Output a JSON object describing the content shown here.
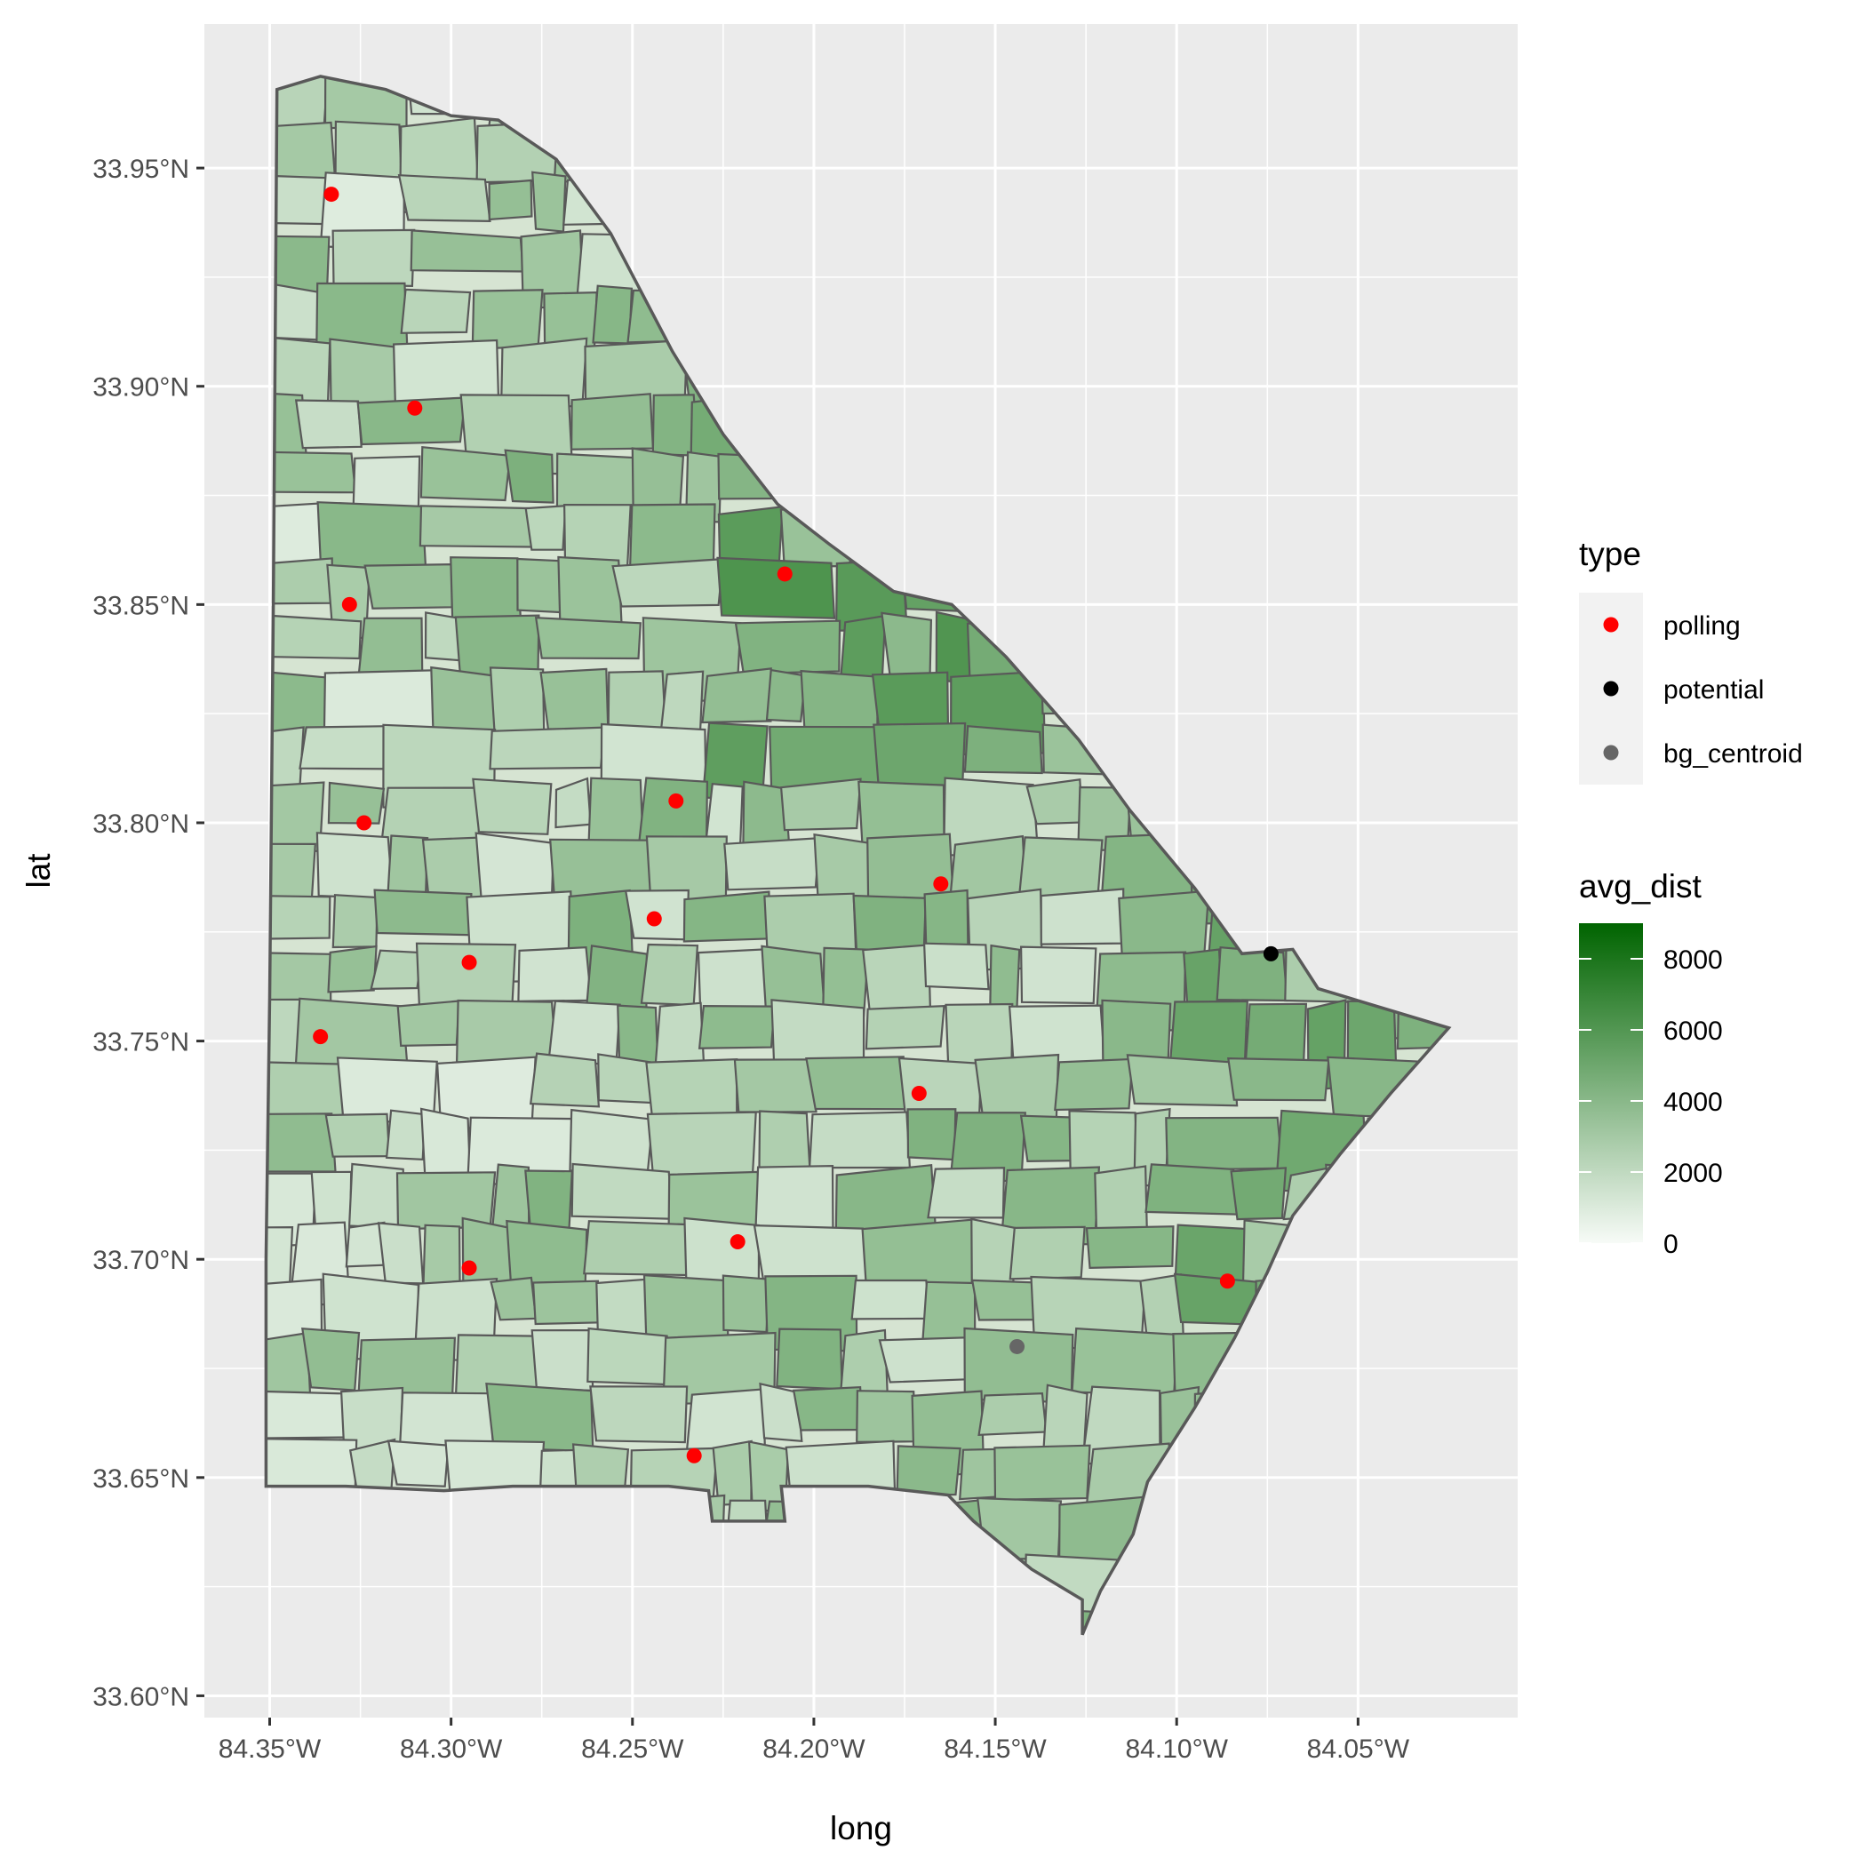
{
  "chart_data": {
    "type": "map",
    "title": "",
    "xlabel": "long",
    "ylabel": "lat",
    "x_ticks": [
      "84.35°W",
      "84.30°W",
      "84.25°W",
      "84.20°W",
      "84.15°W",
      "84.10°W",
      "84.05°W"
    ],
    "y_ticks": [
      "33.95°N",
      "33.90°N",
      "33.85°N",
      "33.80°N",
      "33.75°N",
      "33.70°N",
      "33.65°N",
      "33.60°N"
    ],
    "x_tick_values": [
      -84.35,
      -84.3,
      -84.25,
      -84.2,
      -84.15,
      -84.1,
      -84.05
    ],
    "y_tick_values": [
      33.95,
      33.9,
      33.85,
      33.8,
      33.75,
      33.7,
      33.65,
      33.6
    ],
    "xlim": [
      -84.368,
      -84.006
    ],
    "ylim": [
      33.595,
      33.983
    ],
    "grid": true,
    "background": "#ebebeb",
    "boundary_color": "#595959",
    "outline": [
      [
        -84.348,
        33.968
      ],
      [
        -84.336,
        33.971
      ],
      [
        -84.318,
        33.968
      ],
      [
        -84.3,
        33.962
      ],
      [
        -84.287,
        33.961
      ],
      [
        -84.271,
        33.952
      ],
      [
        -84.256,
        33.935
      ],
      [
        -84.239,
        33.908
      ],
      [
        -84.225,
        33.889
      ],
      [
        -84.21,
        33.873
      ],
      [
        -84.196,
        33.864
      ],
      [
        -84.178,
        33.853
      ],
      [
        -84.162,
        33.85
      ],
      [
        -84.147,
        33.838
      ],
      [
        -84.127,
        33.819
      ],
      [
        -84.113,
        33.803
      ],
      [
        -84.095,
        33.785
      ],
      [
        -84.082,
        33.77
      ],
      [
        -84.068,
        33.771
      ],
      [
        -84.061,
        33.762
      ],
      [
        -84.025,
        33.753
      ],
      [
        -84.041,
        33.738
      ],
      [
        -84.055,
        33.724
      ],
      [
        -84.068,
        33.71
      ],
      [
        -84.075,
        33.697
      ],
      [
        -84.084,
        33.682
      ],
      [
        -84.095,
        33.666
      ],
      [
        -84.108,
        33.649
      ],
      [
        -84.112,
        33.637
      ],
      [
        -84.121,
        33.624
      ],
      [
        -84.126,
        33.614
      ],
      [
        -84.126,
        33.622
      ],
      [
        -84.14,
        33.629
      ],
      [
        -84.156,
        33.64
      ],
      [
        -84.163,
        33.646
      ],
      [
        -84.185,
        33.648
      ],
      [
        -84.209,
        33.648
      ],
      [
        -84.208,
        33.64
      ],
      [
        -84.228,
        33.64
      ],
      [
        -84.229,
        33.647
      ],
      [
        -84.24,
        33.648
      ],
      [
        -84.283,
        33.648
      ],
      [
        -84.302,
        33.647
      ],
      [
        -84.329,
        33.648
      ],
      [
        -84.351,
        33.648
      ],
      [
        -84.351,
        33.7
      ],
      [
        -84.35,
        33.76
      ],
      [
        -84.349,
        33.85
      ],
      [
        -84.348,
        33.968
      ]
    ],
    "series": [
      {
        "name": "polling",
        "color": "#ff0000",
        "points": [
          {
            "long": -84.333,
            "lat": 33.944
          },
          {
            "long": -84.31,
            "lat": 33.895
          },
          {
            "long": -84.208,
            "lat": 33.857
          },
          {
            "long": -84.328,
            "lat": 33.85
          },
          {
            "long": -84.324,
            "lat": 33.8
          },
          {
            "long": -84.238,
            "lat": 33.805
          },
          {
            "long": -84.165,
            "lat": 33.786
          },
          {
            "long": -84.244,
            "lat": 33.778
          },
          {
            "long": -84.295,
            "lat": 33.768
          },
          {
            "long": -84.336,
            "lat": 33.751
          },
          {
            "long": -84.171,
            "lat": 33.738
          },
          {
            "long": -84.221,
            "lat": 33.704
          },
          {
            "long": -84.295,
            "lat": 33.698
          },
          {
            "long": -84.086,
            "lat": 33.695
          },
          {
            "long": -84.233,
            "lat": 33.655
          }
        ]
      },
      {
        "name": "potential",
        "color": "#000000",
        "points": [
          {
            "long": -84.074,
            "lat": 33.77
          }
        ]
      },
      {
        "name": "bg_centroid",
        "color": "#666666",
        "points": [
          {
            "long": -84.144,
            "lat": 33.68
          }
        ]
      }
    ],
    "legend_type": {
      "title": "type",
      "entries": [
        "polling",
        "potential",
        "bg_centroid"
      ]
    },
    "legend_fill": {
      "title": "avg_dist",
      "low_color": "#f7fbf7",
      "high_color": "#006400",
      "limits": [
        0,
        9000
      ],
      "breaks": [
        "8000",
        "6000",
        "4000",
        "2000",
        "0"
      ],
      "break_values": [
        8000,
        6000,
        4000,
        2000,
        0
      ]
    }
  }
}
